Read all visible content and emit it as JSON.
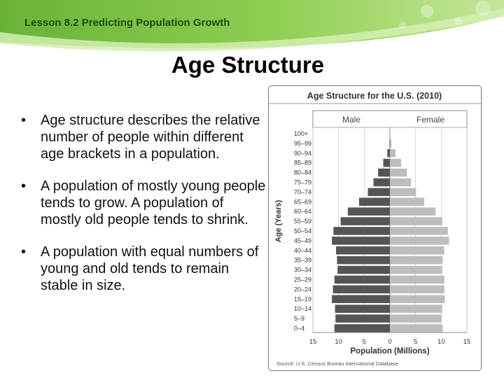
{
  "slide": {
    "lesson": "Lesson 8.2 Predicting Population Growth",
    "title": "Age Structure",
    "bullets": [
      "Age structure describes the relative number of people within different age brackets in a population.",
      "A population of mostly young people tends to grow. A population of mostly old people tends to shrink.",
      "A population with equal numbers of young and old tends to remain stable in size."
    ],
    "bullet_symbol": "•"
  },
  "colors": {
    "banner_green": "#7cc043",
    "banner_light": "#b9e17b",
    "lesson_text": "#1d4d12",
    "male_bar": "#555555",
    "female_bar": "#bdbdbd"
  },
  "chart_data": {
    "type": "bar",
    "orientation": "horizontal-pyramid",
    "title": "Age Structure for the U.S. (2010)",
    "xlabel": "Population (Millions)",
    "ylabel": "Age (Years)",
    "source": "Source: U.S. Census Bureau International Database",
    "categories": [
      "0–4",
      "5–9",
      "10–14",
      "15–19",
      "20–24",
      "25–29",
      "30–34",
      "35–39",
      "40–44",
      "45–49",
      "50–54",
      "55–59",
      "60–64",
      "65–69",
      "70–74",
      "75–79",
      "80–84",
      "85–89",
      "90–94",
      "95–99",
      "100+"
    ],
    "series": [
      {
        "name": "Male",
        "values": [
          10.8,
          10.6,
          10.7,
          11.3,
          11.1,
          10.8,
          10.2,
          10.3,
          10.5,
          11.3,
          11.0,
          9.6,
          8.2,
          6.0,
          4.3,
          3.2,
          2.3,
          1.3,
          0.5,
          0.1,
          0.0
        ]
      },
      {
        "name": "Female",
        "values": [
          10.3,
          10.1,
          10.2,
          10.7,
          10.6,
          10.6,
          10.2,
          10.3,
          10.6,
          11.5,
          11.3,
          10.2,
          8.9,
          6.7,
          5.1,
          4.1,
          3.3,
          2.2,
          1.1,
          0.3,
          0.05
        ]
      }
    ],
    "xlim": [
      -15,
      15
    ],
    "xticks": [
      "15",
      "10",
      "5",
      "0",
      "5",
      "10",
      "15"
    ],
    "grid": true,
    "legend": "column headers at top: Male (left), Female (right)"
  }
}
